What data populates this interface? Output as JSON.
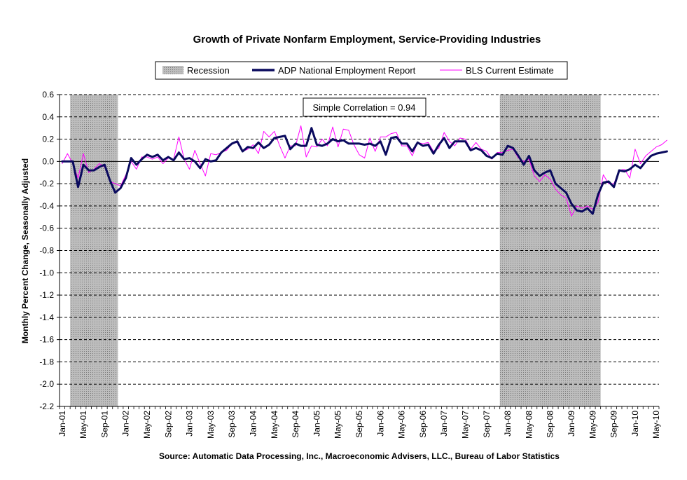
{
  "chart_data": {
    "type": "line",
    "title": "Growth of Private Nonfarm Employment, Service-Providing Industries",
    "ylabel": "Monthly Percent Change, Seasonally Adjusted",
    "source": "Source: Automatic Data Processing, Inc., Macroeconomic Advisers, LLC., Bureau of Labor Statistics",
    "annotation": "Simple Correlation = 0.94",
    "ylim": [
      -2.2,
      0.6
    ],
    "yticks": [
      "0.6",
      "0.4",
      "0.2",
      "0.0",
      "-0.2",
      "-0.4",
      "-0.6",
      "-0.8",
      "-1.0",
      "-1.2",
      "-1.4",
      "-1.6",
      "-1.8",
      "-2.0",
      "-2.2"
    ],
    "ytick_values": [
      0.6,
      0.4,
      0.2,
      0.0,
      -0.2,
      -0.4,
      -0.6,
      -0.8,
      -1.0,
      -1.2,
      -1.4,
      -1.6,
      -1.8,
      -2.0,
      -2.2
    ],
    "x_start": "Jan-01",
    "x_end": "May-10",
    "xtick_labels": [
      "Jan-01",
      "May-01",
      "Sep-01",
      "Jan-02",
      "May-02",
      "Sep-02",
      "Jan-03",
      "May-03",
      "Sep-03",
      "Jan-04",
      "May-04",
      "Sep-04",
      "Jan-05",
      "May-05",
      "Sep-05",
      "Jan-06",
      "May-06",
      "Sep-06",
      "Jan-07",
      "May-07",
      "Sep-07",
      "Jan-08",
      "May-08",
      "Sep-08",
      "Jan-09",
      "May-09",
      "Sep-09",
      "Jan-10",
      "May-10"
    ],
    "grid": "horizontal dashed",
    "legend_placement": "top",
    "recessions": [
      {
        "start": "Mar-01",
        "end": "Nov-01"
      },
      {
        "start": "Dec-07",
        "end": "Jun-09"
      }
    ],
    "series": [
      {
        "name": "Recession",
        "kind": "shaded-area",
        "color": "#a8a8a8"
      },
      {
        "name": "ADP National Employment Report",
        "color": "#0a0a5e",
        "values": [
          0.0,
          0.0,
          0.0,
          -0.23,
          -0.03,
          -0.08,
          -0.08,
          -0.05,
          -0.03,
          -0.17,
          -0.28,
          -0.24,
          -0.15,
          0.03,
          -0.03,
          0.02,
          0.06,
          0.04,
          0.06,
          0.01,
          0.04,
          0.01,
          0.08,
          0.02,
          0.03,
          0.0,
          -0.06,
          0.02,
          0.0,
          0.01,
          0.08,
          0.12,
          0.16,
          0.18,
          0.09,
          0.13,
          0.12,
          0.17,
          0.12,
          0.15,
          0.21,
          0.22,
          0.23,
          0.11,
          0.16,
          0.14,
          0.14,
          0.3,
          0.15,
          0.14,
          0.16,
          0.2,
          0.18,
          0.19,
          0.16,
          0.16,
          0.16,
          0.15,
          0.16,
          0.14,
          0.18,
          0.06,
          0.21,
          0.22,
          0.16,
          0.16,
          0.09,
          0.17,
          0.14,
          0.15,
          0.07,
          0.15,
          0.21,
          0.12,
          0.18,
          0.18,
          0.18,
          0.1,
          0.12,
          0.1,
          0.05,
          0.03,
          0.07,
          0.06,
          0.14,
          0.12,
          0.05,
          -0.03,
          0.05,
          -0.08,
          -0.13,
          -0.1,
          -0.08,
          -0.2,
          -0.24,
          -0.28,
          -0.38,
          -0.44,
          -0.45,
          -0.42,
          -0.47,
          -0.3,
          -0.19,
          -0.18,
          -0.23,
          -0.08,
          -0.09,
          -0.07,
          -0.03,
          -0.06,
          0.0,
          0.05,
          0.07,
          0.08,
          0.09
        ]
      },
      {
        "name": "BLS Current Estimate",
        "color": "#ff00ff",
        "values": [
          -0.02,
          0.07,
          -0.02,
          -0.15,
          0.07,
          -0.1,
          -0.07,
          -0.02,
          -0.05,
          -0.18,
          -0.2,
          -0.22,
          -0.12,
          0.0,
          -0.07,
          0.04,
          0.04,
          0.02,
          0.04,
          -0.02,
          0.03,
          0.02,
          0.22,
          0.02,
          -0.07,
          0.1,
          -0.02,
          -0.13,
          0.07,
          0.06,
          0.08,
          0.1,
          0.16,
          0.17,
          0.09,
          0.11,
          0.15,
          0.07,
          0.27,
          0.22,
          0.27,
          0.14,
          0.03,
          0.14,
          0.14,
          0.32,
          0.04,
          0.14,
          0.13,
          0.2,
          0.14,
          0.31,
          0.13,
          0.29,
          0.28,
          0.15,
          0.06,
          0.03,
          0.21,
          0.09,
          0.22,
          0.22,
          0.25,
          0.26,
          0.14,
          0.14,
          0.05,
          0.17,
          0.16,
          0.17,
          0.09,
          0.12,
          0.26,
          0.18,
          0.14,
          0.21,
          0.2,
          0.11,
          0.17,
          0.11,
          0.09,
          0.02,
          0.08,
          0.08,
          0.1,
          0.11,
          0.03,
          0.0,
          0.02,
          -0.13,
          -0.18,
          -0.12,
          -0.16,
          -0.25,
          -0.3,
          -0.33,
          -0.49,
          -0.4,
          -0.42,
          -0.4,
          -0.43,
          -0.37,
          -0.12,
          -0.2,
          -0.2,
          -0.08,
          -0.07,
          -0.15,
          0.11,
          -0.02,
          0.05,
          0.09,
          0.13,
          0.15,
          0.19
        ]
      }
    ]
  }
}
